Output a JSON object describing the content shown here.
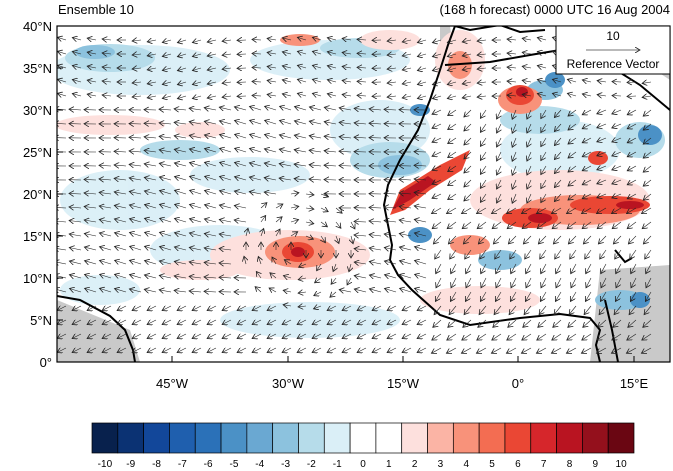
{
  "header": {
    "left_title": "Ensemble 10",
    "right_title": "(168 h forecast) 0000 UTC 16 Aug 2004"
  },
  "map": {
    "lat_labels": [
      "40°N",
      "35°N",
      "30°N",
      "25°N",
      "20°N",
      "15°N",
      "10°N",
      "5°N",
      "0°"
    ],
    "lon_labels": [
      "45°W",
      "30°W",
      "15°W",
      "0°",
      "15°E"
    ],
    "reference_vector": {
      "value": "10",
      "label": "Reference Vector"
    }
  },
  "colorbar": {
    "labels": [
      "-10",
      "-9",
      "-8",
      "-7",
      "-6",
      "-5",
      "-4",
      "-3",
      "-2",
      "-1",
      "0",
      "1",
      "2",
      "3",
      "4",
      "5",
      "6",
      "7",
      "8",
      "9",
      "10"
    ],
    "colors": [
      "#08214d",
      "#0b3273",
      "#12479a",
      "#1f5fae",
      "#2b71b8",
      "#4b91c6",
      "#6aa8d2",
      "#8cc2de",
      "#b6dcea",
      "#daeff7",
      "#ffffff",
      "#ffffff",
      "#fde0dd",
      "#fbb4a5",
      "#f8927a",
      "#f36d52",
      "#ea4734",
      "#d6262b",
      "#b91421",
      "#94101c",
      "#6a0612"
    ]
  }
}
